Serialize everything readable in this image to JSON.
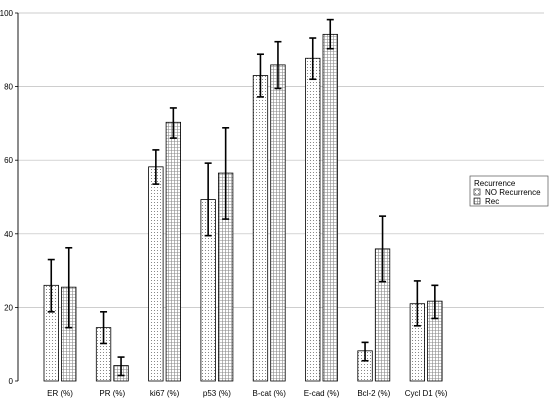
{
  "chart_data": {
    "type": "bar",
    "categories": [
      "ER (%)",
      "PR (%)",
      "ki67 (%)",
      "p53 (%)",
      "B-cat (%)",
      "E-cad (%)",
      "Bcl-2 (%)",
      "Cycl D1 (%)"
    ],
    "series": [
      {
        "name": "NO Recurrence",
        "values": [
          26.0,
          14.5,
          58.2,
          49.3,
          83.0,
          87.7,
          8.2,
          21.0
        ],
        "error_low": [
          18.8,
          10.2,
          53.5,
          39.5,
          77.2,
          82.0,
          5.5,
          15.0
        ],
        "error_high": [
          33.0,
          18.8,
          62.8,
          59.2,
          88.8,
          93.2,
          10.5,
          27.2
        ],
        "pattern": "dots",
        "color": "#333333"
      },
      {
        "name": "Rec",
        "values": [
          25.5,
          4.2,
          70.3,
          56.5,
          85.9,
          94.2,
          35.9,
          21.7
        ],
        "error_low": [
          14.5,
          1.5,
          66.0,
          44.0,
          79.5,
          90.3,
          27.0,
          17.0
        ],
        "error_high": [
          36.2,
          6.5,
          74.2,
          68.8,
          92.2,
          98.2,
          44.8,
          26.0
        ],
        "pattern": "grid",
        "color": "#333333"
      }
    ],
    "ylim": [
      0,
      100
    ],
    "yticks": [
      0,
      20,
      40,
      60,
      80,
      100
    ],
    "grid": true,
    "title": "",
    "xlabel": "",
    "ylabel": "",
    "legend": {
      "title": "Recurrence",
      "placement": "right",
      "entries": [
        "NO Recurrence",
        "Rec"
      ]
    }
  }
}
